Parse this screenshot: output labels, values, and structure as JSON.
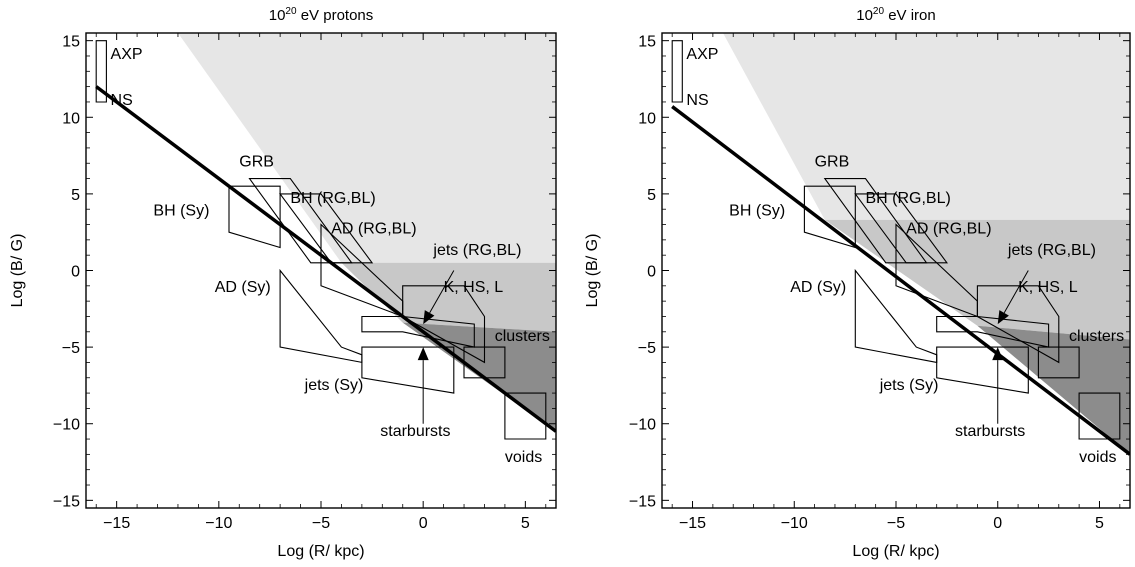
{
  "chart_data": [
    {
      "type": "line",
      "title": "10^20 eV protons",
      "title_base": "10",
      "title_exp": "20",
      "title_rest": " eV  protons",
      "xlabel": "Log (R/ kpc)",
      "ylabel": "Log (B/ G)",
      "xlim": [
        -16.5,
        6.5
      ],
      "ylim": [
        -15.5,
        15.5
      ],
      "xticks": [
        -15,
        -10,
        -5,
        0,
        5
      ],
      "yticks": [
        -15,
        -10,
        -5,
        0,
        5,
        10,
        15
      ],
      "xtick_labels": [
        "−15",
        "−10",
        "−5",
        "0",
        "5"
      ],
      "ytick_labels": [
        "−15",
        "−10",
        "−5",
        "0",
        "5",
        "10",
        "15"
      ],
      "hillas_line": {
        "x": [
          -16,
          6.5
        ],
        "y": [
          12,
          -10.5
        ]
      },
      "regions": [
        {
          "name": "light",
          "color": "#e6e6e6",
          "points": [
            [
              -12,
              15.5
            ],
            [
              6.5,
              15.5
            ],
            [
              6.5,
              0.5
            ],
            [
              -4,
              0.5
            ]
          ]
        },
        {
          "name": "medium",
          "color": "#c8c8c8",
          "points": [
            [
              -4,
              0.5
            ],
            [
              6.5,
              0.5
            ],
            [
              6.5,
              -4
            ],
            [
              -1,
              -3.4
            ]
          ]
        },
        {
          "name": "dark",
          "color": "#8c8c8c",
          "points": [
            [
              -1,
              -3.4
            ],
            [
              6.5,
              -4
            ],
            [
              6.5,
              -10.5
            ]
          ]
        }
      ],
      "sources": [
        {
          "name": "AXP",
          "points": [
            [
              -16,
              15
            ],
            [
              -15.5,
              15
            ],
            [
              -15.5,
              11
            ],
            [
              -16,
              11
            ]
          ]
        },
        {
          "name": "GRB",
          "points": [
            [
              -8.5,
              6
            ],
            [
              -6.5,
              6
            ],
            [
              -3.5,
              0.5
            ],
            [
              -5.5,
              0.5
            ]
          ]
        },
        {
          "name": "BH (Sy)",
          "points": [
            [
              -9.5,
              5.5
            ],
            [
              -7,
              5.5
            ],
            [
              -7,
              1.5
            ],
            [
              -9.5,
              2.5
            ]
          ]
        },
        {
          "name": "BH (RG,BL)",
          "points": [
            [
              -7,
              5
            ],
            [
              -5,
              5
            ],
            [
              -2.5,
              0.5
            ],
            [
              -4.5,
              0.5
            ]
          ]
        },
        {
          "name": "AD (RG,BL)",
          "points": [
            [
              -5,
              3
            ],
            [
              -5,
              -1
            ],
            [
              -1,
              -3
            ],
            [
              -1,
              -2
            ]
          ]
        },
        {
          "name": "AD (Sy)",
          "points": [
            [
              -7,
              0
            ],
            [
              -7,
              -5
            ],
            [
              -3,
              -6
            ],
            [
              -3,
              -5.5
            ],
            [
              -4,
              -5
            ]
          ]
        },
        {
          "name": "K, HS, L",
          "points": [
            [
              -1,
              -1
            ],
            [
              2,
              -1
            ],
            [
              3,
              -3
            ],
            [
              3,
              -6
            ],
            [
              -1,
              -3
            ]
          ]
        },
        {
          "name": "jets (RG,BL)",
          "points": [
            [
              -3,
              -3
            ],
            [
              -1,
              -3
            ],
            [
              2.5,
              -3.5
            ],
            [
              2.5,
              -5
            ],
            [
              -1,
              -4
            ],
            [
              -3,
              -4
            ]
          ]
        },
        {
          "name": "jets (Sy)",
          "points": [
            [
              -3,
              -5
            ],
            [
              1.5,
              -5
            ],
            [
              1.5,
              -8
            ],
            [
              -3,
              -7
            ]
          ]
        },
        {
          "name": "clusters",
          "points": [
            [
              2,
              -5
            ],
            [
              4,
              -5
            ],
            [
              4,
              -7
            ],
            [
              2,
              -7
            ]
          ]
        },
        {
          "name": "voids",
          "points": [
            [
              4,
              -8
            ],
            [
              6,
              -8
            ],
            [
              6,
              -11
            ],
            [
              4,
              -11
            ]
          ]
        }
      ],
      "annotations": [
        {
          "text": "AXP",
          "x": -15.3,
          "y": 13.8
        },
        {
          "text": "NS",
          "x": -15.3,
          "y": 10.8
        },
        {
          "text": "GRB",
          "x": -9.0,
          "y": 6.8
        },
        {
          "text": "BH (Sy)",
          "x": -13.2,
          "y": 3.6
        },
        {
          "text": "BH (RG,BL)",
          "x": -6.5,
          "y": 4.4
        },
        {
          "text": "AD (RG,BL)",
          "x": -4.5,
          "y": 2.4
        },
        {
          "text": "AD (Sy)",
          "x": -10.2,
          "y": -1.4
        },
        {
          "text": "jets (RG,BL)",
          "x": 0.5,
          "y": 1.0
        },
        {
          "text": "K, HS, L",
          "x": 1.0,
          "y": -1.4
        },
        {
          "text": "clusters",
          "x": 3.5,
          "y": -4.6
        },
        {
          "text": "jets (Sy)",
          "x": -5.8,
          "y": -7.8
        },
        {
          "text": "starbursts",
          "x": -2.1,
          "y": -10.8
        },
        {
          "text": "voids",
          "x": 4.0,
          "y": -12.5
        }
      ],
      "arrows": [
        {
          "from": [
            1.5,
            0.0
          ],
          "to": [
            0.0,
            -3.5
          ]
        },
        {
          "from": [
            0.0,
            -10.0
          ],
          "to": [
            0.0,
            -5.0
          ]
        }
      ]
    },
    {
      "type": "line",
      "title": "10^20 eV iron",
      "title_base": "10",
      "title_exp": "20",
      "title_rest": " eV  iron",
      "xlabel": "Log (R/ kpc)",
      "ylabel": "Log (B/ G)",
      "xlim": [
        -16.5,
        6.5
      ],
      "ylim": [
        -15.5,
        15.5
      ],
      "xticks": [
        -15,
        -10,
        -5,
        0,
        5
      ],
      "yticks": [
        -15,
        -10,
        -5,
        0,
        5,
        10,
        15
      ],
      "xtick_labels": [
        "−15",
        "−10",
        "−5",
        "0",
        "5"
      ],
      "ytick_labels": [
        "−15",
        "−10",
        "−5",
        "0",
        "5",
        "10",
        "15"
      ],
      "hillas_line": {
        "x": [
          -16,
          6.5
        ],
        "y": [
          10.7,
          -12
        ]
      },
      "regions": [
        {
          "name": "light",
          "color": "#e6e6e6",
          "points": [
            [
              -13.5,
              15.5
            ],
            [
              6.5,
              15.5
            ],
            [
              6.5,
              3.3
            ],
            [
              -8.5,
              3.3
            ]
          ]
        },
        {
          "name": "medium",
          "color": "#c8c8c8",
          "points": [
            [
              -8.5,
              3.3
            ],
            [
              6.5,
              3.3
            ],
            [
              6.5,
              -4.5
            ],
            [
              -1,
              -3.6
            ]
          ]
        },
        {
          "name": "dark",
          "color": "#8c8c8c",
          "points": [
            [
              -1,
              -3.6
            ],
            [
              6.5,
              -4.5
            ],
            [
              6.5,
              -12
            ]
          ]
        }
      ],
      "sources": [
        {
          "name": "AXP",
          "points": [
            [
              -16,
              15
            ],
            [
              -15.5,
              15
            ],
            [
              -15.5,
              11
            ],
            [
              -16,
              11
            ]
          ]
        },
        {
          "name": "GRB",
          "points": [
            [
              -8.5,
              6
            ],
            [
              -6.5,
              6
            ],
            [
              -3.5,
              0.5
            ],
            [
              -5.5,
              0.5
            ]
          ]
        },
        {
          "name": "BH (Sy)",
          "points": [
            [
              -9.5,
              5.5
            ],
            [
              -7,
              5.5
            ],
            [
              -7,
              1.5
            ],
            [
              -9.5,
              2.5
            ]
          ]
        },
        {
          "name": "BH (RG,BL)",
          "points": [
            [
              -7,
              5
            ],
            [
              -5,
              5
            ],
            [
              -2.5,
              0.5
            ],
            [
              -4.5,
              0.5
            ]
          ]
        },
        {
          "name": "AD (RG,BL)",
          "points": [
            [
              -5,
              3
            ],
            [
              -5,
              -1
            ],
            [
              -1,
              -3
            ],
            [
              -1,
              -2
            ]
          ]
        },
        {
          "name": "AD (Sy)",
          "points": [
            [
              -7,
              0
            ],
            [
              -7,
              -5
            ],
            [
              -3,
              -6
            ],
            [
              -3,
              -5.5
            ],
            [
              -4,
              -5
            ]
          ]
        },
        {
          "name": "K, HS, L",
          "points": [
            [
              -1,
              -1
            ],
            [
              2,
              -1
            ],
            [
              3,
              -3
            ],
            [
              3,
              -6
            ],
            [
              -1,
              -3
            ]
          ]
        },
        {
          "name": "jets (RG,BL)",
          "points": [
            [
              -3,
              -3
            ],
            [
              -1,
              -3
            ],
            [
              2.5,
              -3.5
            ],
            [
              2.5,
              -5
            ],
            [
              -1,
              -4
            ],
            [
              -3,
              -4
            ]
          ]
        },
        {
          "name": "jets (Sy)",
          "points": [
            [
              -3,
              -5
            ],
            [
              1.5,
              -5
            ],
            [
              1.5,
              -8
            ],
            [
              -3,
              -7
            ]
          ]
        },
        {
          "name": "clusters",
          "points": [
            [
              2,
              -5
            ],
            [
              4,
              -5
            ],
            [
              4,
              -7
            ],
            [
              2,
              -7
            ]
          ]
        },
        {
          "name": "voids",
          "points": [
            [
              4,
              -8
            ],
            [
              6,
              -8
            ],
            [
              6,
              -11
            ],
            [
              4,
              -11
            ]
          ]
        }
      ],
      "annotations": [
        {
          "text": "AXP",
          "x": -15.3,
          "y": 13.8
        },
        {
          "text": "NS",
          "x": -15.3,
          "y": 10.8
        },
        {
          "text": "GRB",
          "x": -9.0,
          "y": 6.8
        },
        {
          "text": "BH (Sy)",
          "x": -13.2,
          "y": 3.6
        },
        {
          "text": "BH (RG,BL)",
          "x": -6.5,
          "y": 4.4
        },
        {
          "text": "AD (RG,BL)",
          "x": -4.5,
          "y": 2.4
        },
        {
          "text": "AD (Sy)",
          "x": -10.2,
          "y": -1.4
        },
        {
          "text": "jets (RG,BL)",
          "x": 0.5,
          "y": 1.0
        },
        {
          "text": "K, HS, L",
          "x": 1.0,
          "y": -1.4
        },
        {
          "text": "clusters",
          "x": 3.5,
          "y": -4.6
        },
        {
          "text": "jets (Sy)",
          "x": -5.8,
          "y": -7.8
        },
        {
          "text": "starbursts",
          "x": -2.1,
          "y": -10.8
        },
        {
          "text": "voids",
          "x": 4.0,
          "y": -12.5
        }
      ],
      "arrows": [
        {
          "from": [
            1.5,
            0.0
          ],
          "to": [
            0.0,
            -3.5
          ]
        },
        {
          "from": [
            0.0,
            -10.0
          ],
          "to": [
            0.0,
            -5.0
          ]
        }
      ]
    }
  ]
}
